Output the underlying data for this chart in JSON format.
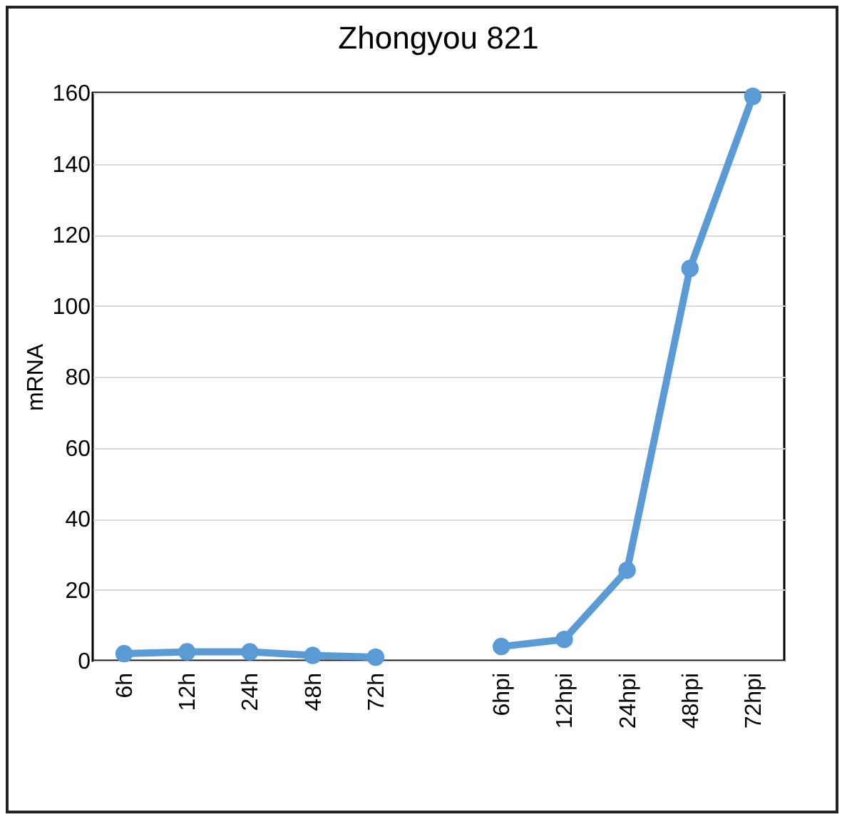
{
  "chart_data": {
    "type": "line",
    "title": "Zhongyou 821",
    "ylabel": "mRNA",
    "categories": [
      "6h",
      "12h",
      "24h",
      "48h",
      "72h",
      null,
      "6hpi",
      "12hpi",
      "24hpi",
      "48hpi",
      "72hpi"
    ],
    "series": [
      {
        "color": "#5b9bd5",
        "values": [
          2,
          2.5,
          2.5,
          1.5,
          1,
          null,
          4,
          6,
          25.5,
          110.5,
          159
        ]
      }
    ],
    "ylim": [
      0,
      160
    ],
    "yticks": [
      0,
      20,
      40,
      60,
      80,
      100,
      120,
      140,
      160
    ],
    "grid": "y",
    "marker": "circle",
    "line_style": "solid"
  }
}
